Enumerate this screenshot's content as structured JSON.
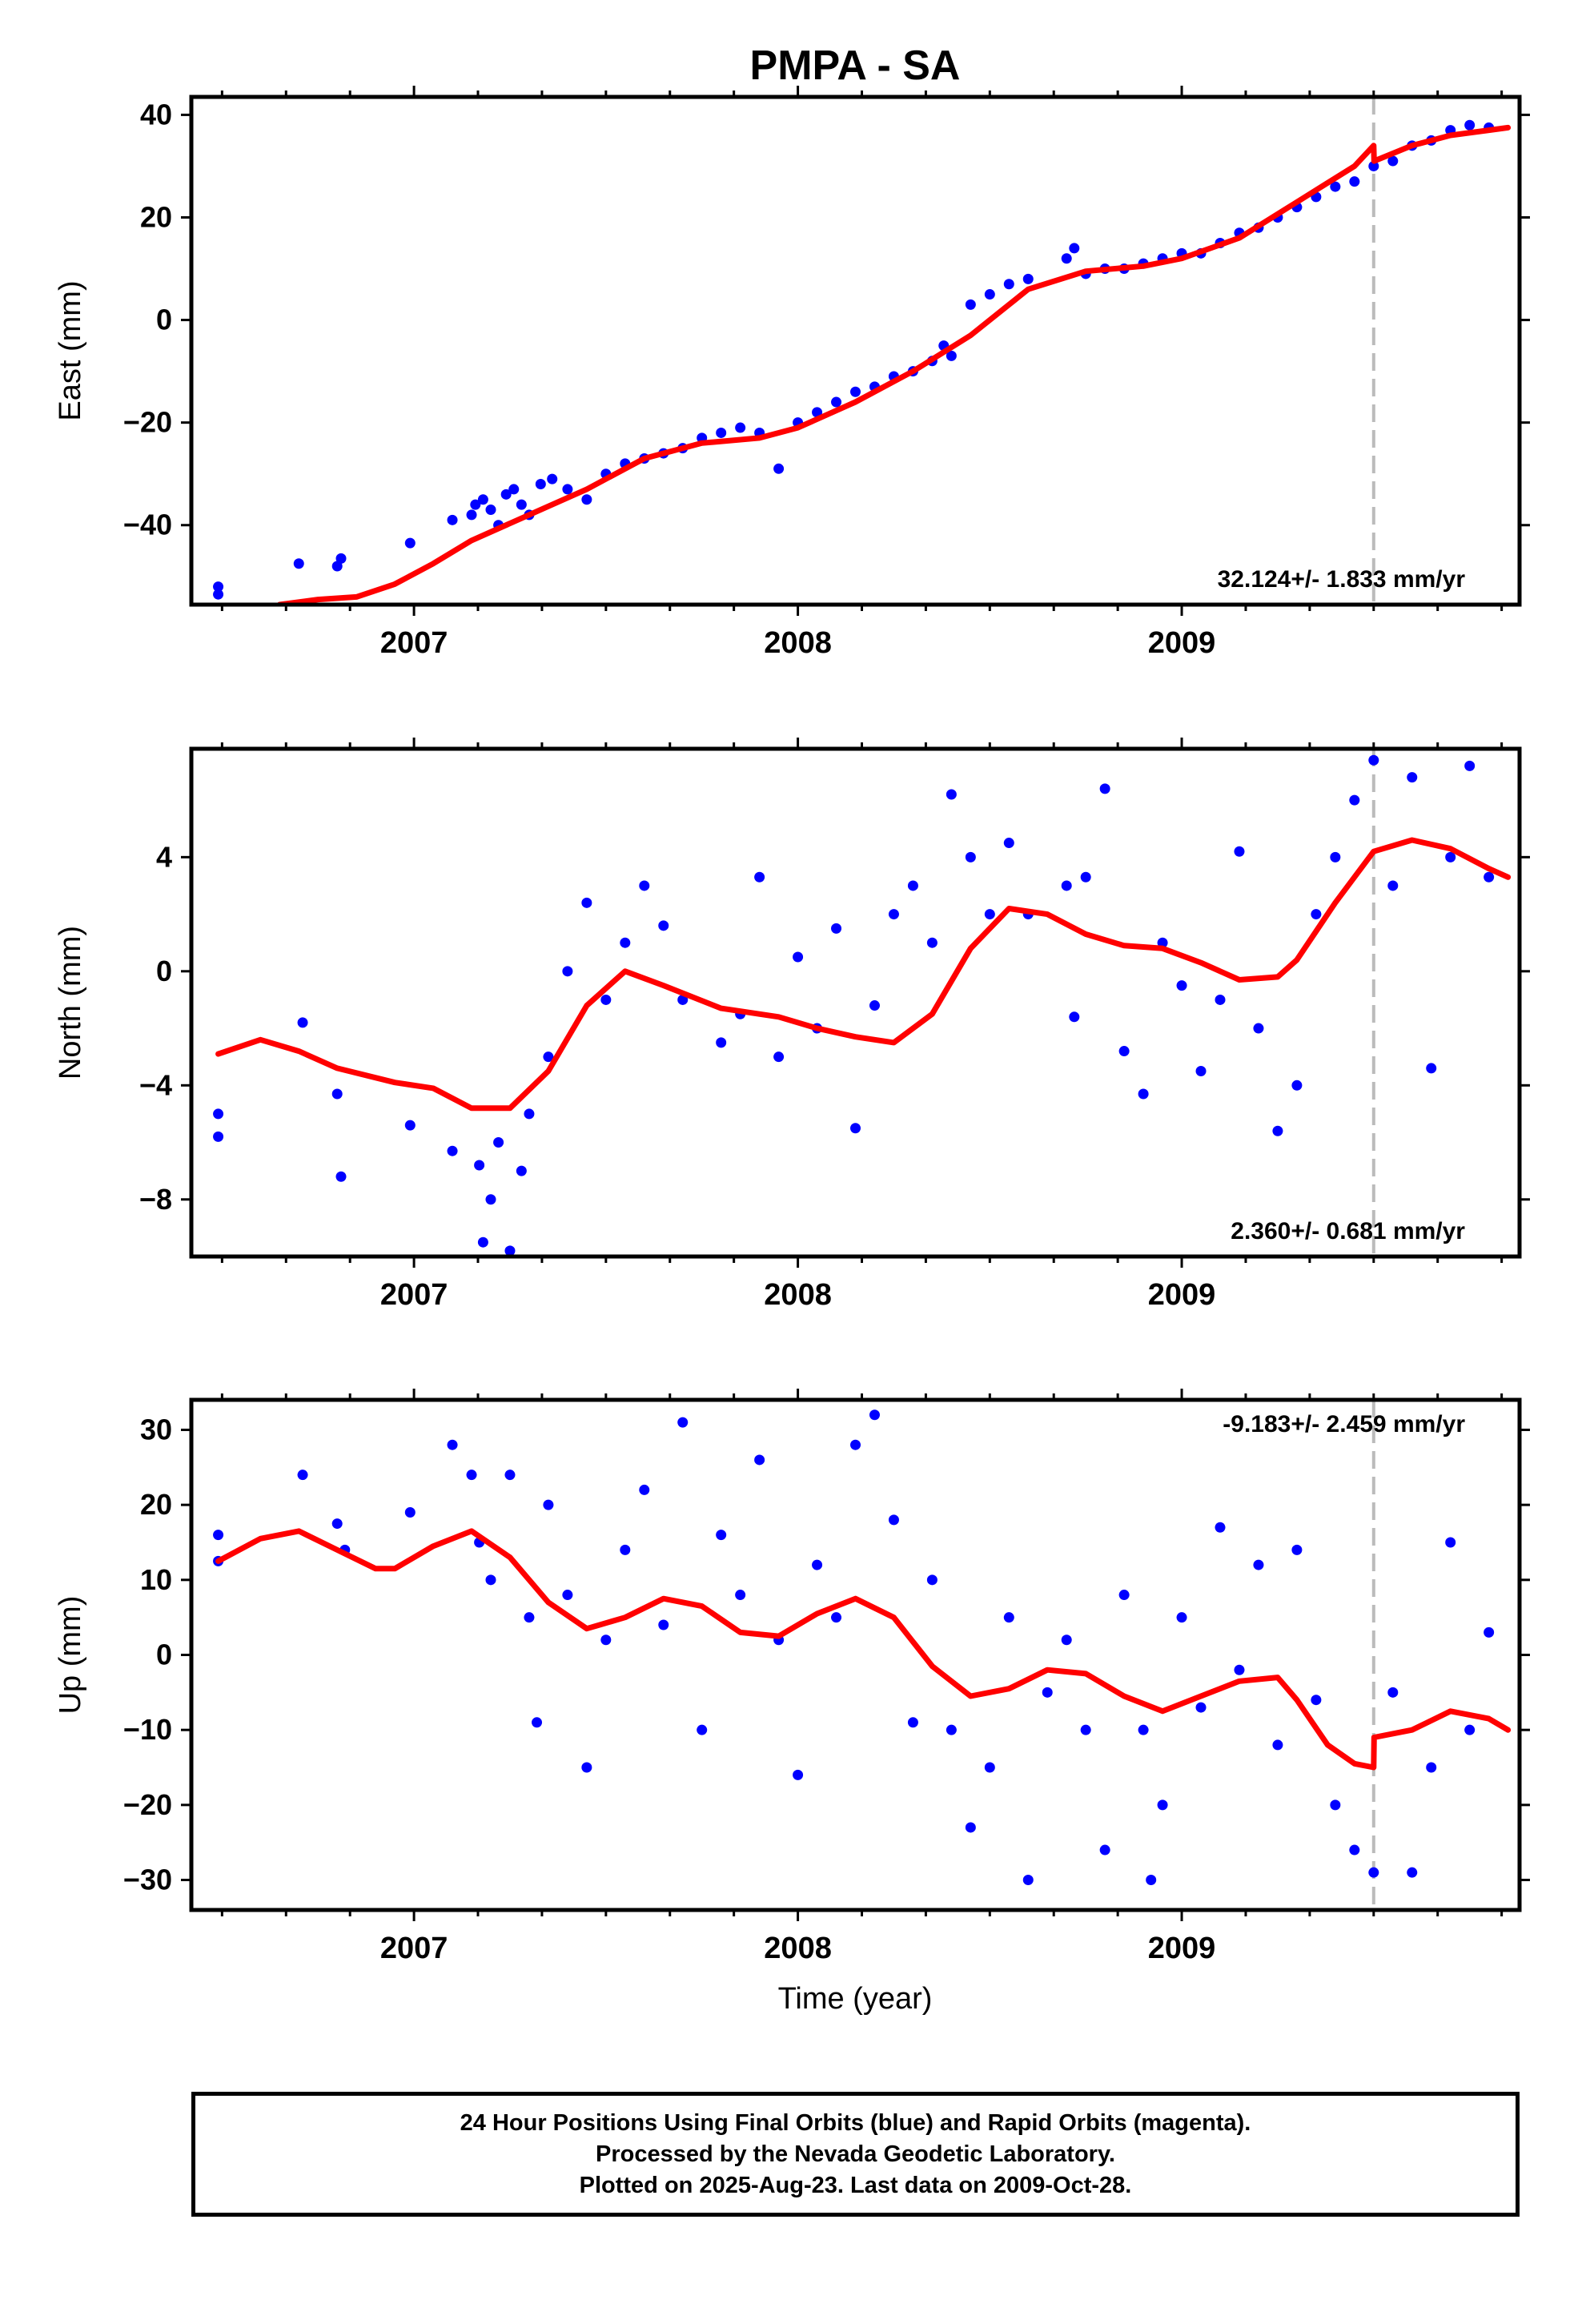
{
  "title": "PMPA - SA",
  "xlabel": "Time (year)",
  "caption": [
    "24 Hour Positions Using Final Orbits (blue) and Rapid Orbits (magenta).",
    "Processed by the Nevada Geodetic Laboratory.",
    "Plotted on 2025-Aug-23. Last data on 2009-Oct-28."
  ],
  "colors": {
    "points": "#0000ff",
    "model": "#ff0000",
    "step_line": "#bbbbbb",
    "axes": "#000000"
  },
  "chart_data": [
    {
      "type": "scatter",
      "title": "PMPA - SA",
      "xlabel": "",
      "ylabel": "East (mm)",
      "xlim": [
        2006.42,
        2009.88
      ],
      "ylim": [
        -55.5,
        43.5
      ],
      "xticks": [
        2007,
        2008,
        2009
      ],
      "yticks": [
        40,
        20,
        0,
        -20,
        -40
      ],
      "grid": false,
      "annotation": "32.124+/- 1.833 mm/yr",
      "equipment_change": 2009.5,
      "series": [
        {
          "x": [
            2006.49,
            2006.49,
            2006.7,
            2006.8,
            2006.81,
            2006.99,
            2007.1,
            2007.15,
            2007.16,
            2007.18,
            2007.2,
            2007.22,
            2007.24,
            2007.26,
            2007.28,
            2007.3,
            2007.33,
            2007.36,
            2007.4,
            2007.45,
            2007.5,
            2007.55,
            2007.6,
            2007.65,
            2007.7,
            2007.75,
            2007.8,
            2007.85,
            2007.9,
            2007.95,
            2008.0,
            2008.05,
            2008.1,
            2008.15,
            2008.2,
            2008.25,
            2008.3,
            2008.35,
            2008.38,
            2008.4,
            2008.45,
            2008.5,
            2008.55,
            2008.6,
            2008.7,
            2008.72,
            2008.75,
            2008.8,
            2008.85,
            2008.9,
            2008.95,
            2009.0,
            2009.05,
            2009.1,
            2009.15,
            2009.2,
            2009.25,
            2009.3,
            2009.35,
            2009.4,
            2009.45,
            2009.5,
            2009.55,
            2009.6,
            2009.65,
            2009.7,
            2009.75,
            2009.8
          ],
          "y": [
            -52,
            -53.5,
            -47.5,
            -48,
            -46.5,
            -43.5,
            -39,
            -38,
            -36,
            -35,
            -37,
            -40,
            -34,
            -33,
            -36,
            -38,
            -32,
            -31,
            -33,
            -35,
            -30,
            -28,
            -27,
            -26,
            -25,
            -23,
            -22,
            -21,
            -22,
            -29,
            -20,
            -18,
            -16,
            -14,
            -13,
            -11,
            -10,
            -8,
            -5,
            -7,
            3,
            5,
            7,
            8,
            12,
            14,
            9,
            10,
            10,
            11,
            12,
            13,
            13,
            15,
            17,
            18,
            20,
            22,
            24,
            26,
            27,
            30,
            31,
            34,
            35,
            37,
            38,
            37.5
          ]
        },
        {
          "name": "",
          "kind": "model",
          "x": [
            2006.65,
            2006.75,
            2006.85,
            2006.95,
            2007.05,
            2007.15,
            2007.3,
            2007.45,
            2007.6,
            2007.75,
            2007.9,
            2008.0,
            2008.15,
            2008.3,
            2008.45,
            2008.6,
            2008.75,
            2008.9,
            2009.0,
            2009.15,
            2009.3,
            2009.45,
            2009.5,
            2009.501,
            2009.6,
            2009.7,
            2009.8,
            2009.85
          ],
          "y": [
            -55.5,
            -54.5,
            -54,
            -51.5,
            -47.5,
            -43,
            -38,
            -33,
            -27,
            -24,
            -23,
            -21,
            -16,
            -10,
            -3,
            6,
            9.5,
            10.5,
            12,
            16,
            23,
            30,
            34,
            31,
            34,
            36,
            37,
            37.5
          ]
        }
      ]
    },
    {
      "type": "scatter",
      "xlabel": "",
      "ylabel": "North (mm)",
      "xlim": [
        2006.42,
        2009.88
      ],
      "ylim": [
        -10,
        7.8
      ],
      "xticks": [
        2007,
        2008,
        2009
      ],
      "yticks": [
        4,
        0,
        -4,
        -8
      ],
      "grid": false,
      "annotation": "2.360+/- 0.681 mm/yr",
      "equipment_change": 2009.5,
      "series": [
        {
          "x": [
            2006.49,
            2006.49,
            2006.71,
            2006.8,
            2006.81,
            2006.99,
            2007.1,
            2007.17,
            2007.18,
            2007.2,
            2007.22,
            2007.25,
            2007.28,
            2007.3,
            2007.35,
            2007.4,
            2007.45,
            2007.5,
            2007.55,
            2007.6,
            2007.65,
            2007.7,
            2007.8,
            2007.85,
            2007.9,
            2007.95,
            2008.0,
            2008.05,
            2008.1,
            2008.15,
            2008.2,
            2008.25,
            2008.3,
            2008.35,
            2008.4,
            2008.45,
            2008.5,
            2008.55,
            2008.6,
            2008.7,
            2008.72,
            2008.75,
            2008.8,
            2008.85,
            2008.9,
            2008.95,
            2009.0,
            2009.05,
            2009.1,
            2009.15,
            2009.2,
            2009.25,
            2009.3,
            2009.35,
            2009.4,
            2009.45,
            2009.5,
            2009.55,
            2009.6,
            2009.65,
            2009.7,
            2009.75,
            2009.8
          ],
          "y": [
            -5,
            -5.8,
            -1.8,
            -4.3,
            -7.2,
            -5.4,
            -6.3,
            -6.8,
            -9.5,
            -8,
            -6,
            -9.8,
            -7,
            -5,
            -3,
            0,
            2.4,
            -1,
            1,
            3,
            1.6,
            -1,
            -2.5,
            -1.5,
            3.3,
            -3,
            0.5,
            -2,
            1.5,
            -5.5,
            -1.2,
            2,
            3,
            1,
            6.2,
            4,
            2,
            4.5,
            2,
            3,
            -1.6,
            3.3,
            6.4,
            -2.8,
            -4.3,
            1,
            -0.5,
            -3.5,
            -1,
            4.2,
            -2,
            -5.6,
            -4,
            2,
            4,
            6,
            7.4,
            3,
            6.8,
            -3.4,
            4,
            7.2,
            3.3
          ]
        },
        {
          "name": "",
          "kind": "model",
          "x": [
            2006.49,
            2006.6,
            2006.7,
            2006.8,
            2006.95,
            2007.05,
            2007.15,
            2007.25,
            2007.35,
            2007.45,
            2007.55,
            2007.65,
            2007.8,
            2007.95,
            2008.05,
            2008.15,
            2008.25,
            2008.35,
            2008.45,
            2008.55,
            2008.65,
            2008.75,
            2008.85,
            2008.95,
            2009.05,
            2009.15,
            2009.25,
            2009.3,
            2009.4,
            2009.5,
            2009.6,
            2009.7,
            2009.8,
            2009.85
          ],
          "y": [
            -2.9,
            -2.4,
            -2.8,
            -3.4,
            -3.9,
            -4.1,
            -4.8,
            -4.8,
            -3.5,
            -1.2,
            0,
            -0.5,
            -1.3,
            -1.6,
            -2,
            -2.3,
            -2.5,
            -1.5,
            0.8,
            2.2,
            2,
            1.3,
            0.9,
            0.8,
            0.3,
            -0.3,
            -0.2,
            0.4,
            2.4,
            4.2,
            4.6,
            4.3,
            3.6,
            3.3
          ]
        }
      ]
    },
    {
      "type": "scatter",
      "xlabel": "Time (year)",
      "ylabel": "Up (mm)",
      "xlim": [
        2006.42,
        2009.88
      ],
      "ylim": [
        -34,
        34
      ],
      "xticks": [
        2007,
        2008,
        2009
      ],
      "yticks": [
        30,
        20,
        10,
        0,
        -10,
        -20,
        -30
      ],
      "grid": false,
      "annotation": "-9.183+/- 2.459 mm/yr",
      "equipment_change": 2009.5,
      "series": [
        {
          "x": [
            2006.49,
            2006.49,
            2006.71,
            2006.8,
            2006.82,
            2006.99,
            2007.1,
            2007.15,
            2007.17,
            2007.2,
            2007.25,
            2007.3,
            2007.32,
            2007.35,
            2007.4,
            2007.45,
            2007.5,
            2007.55,
            2007.6,
            2007.65,
            2007.7,
            2007.75,
            2007.8,
            2007.85,
            2007.9,
            2007.95,
            2008.0,
            2008.05,
            2008.1,
            2008.15,
            2008.2,
            2008.25,
            2008.3,
            2008.35,
            2008.4,
            2008.45,
            2008.5,
            2008.55,
            2008.6,
            2008.65,
            2008.7,
            2008.75,
            2008.8,
            2008.85,
            2008.9,
            2008.92,
            2008.95,
            2009.0,
            2009.05,
            2009.1,
            2009.15,
            2009.2,
            2009.25,
            2009.3,
            2009.35,
            2009.4,
            2009.45,
            2009.5,
            2009.55,
            2009.6,
            2009.65,
            2009.7,
            2009.75,
            2009.8
          ],
          "y": [
            16,
            12.5,
            24,
            17.5,
            14,
            19,
            28,
            24,
            15,
            10,
            24,
            5,
            -9,
            20,
            8,
            -15,
            2,
            14,
            22,
            4,
            31,
            -10,
            16,
            8,
            26,
            2,
            -16,
            12,
            5,
            28,
            32,
            18,
            -9,
            10,
            -10,
            -23,
            -15,
            5,
            -30,
            -5,
            2,
            -10,
            -26,
            8,
            -10,
            -30,
            -20,
            5,
            -7,
            17,
            -2,
            12,
            -12,
            14,
            -6,
            -20,
            -26,
            -29,
            -5,
            -29,
            -15,
            15,
            -10,
            3
          ]
        },
        {
          "name": "",
          "kind": "model",
          "x": [
            2006.49,
            2006.6,
            2006.7,
            2006.8,
            2006.9,
            2006.95,
            2007.05,
            2007.15,
            2007.25,
            2007.35,
            2007.45,
            2007.55,
            2007.65,
            2007.75,
            2007.85,
            2007.95,
            2008.05,
            2008.15,
            2008.25,
            2008.35,
            2008.45,
            2008.55,
            2008.65,
            2008.75,
            2008.85,
            2008.95,
            2009.05,
            2009.15,
            2009.25,
            2009.3,
            2009.38,
            2009.45,
            2009.5,
            2009.501,
            2009.6,
            2009.7,
            2009.8,
            2009.85
          ],
          "y": [
            12.5,
            15.5,
            16.5,
            14,
            11.5,
            11.5,
            14.5,
            16.5,
            13,
            7,
            3.5,
            5,
            7.5,
            6.5,
            3,
            2.5,
            5.5,
            7.5,
            5,
            -1.5,
            -5.5,
            -4.5,
            -2,
            -2.5,
            -5.5,
            -7.5,
            -5.5,
            -3.5,
            -3,
            -6,
            -12,
            -14.5,
            -15,
            -11,
            -10,
            -7.5,
            -8.5,
            -10
          ]
        }
      ]
    }
  ]
}
